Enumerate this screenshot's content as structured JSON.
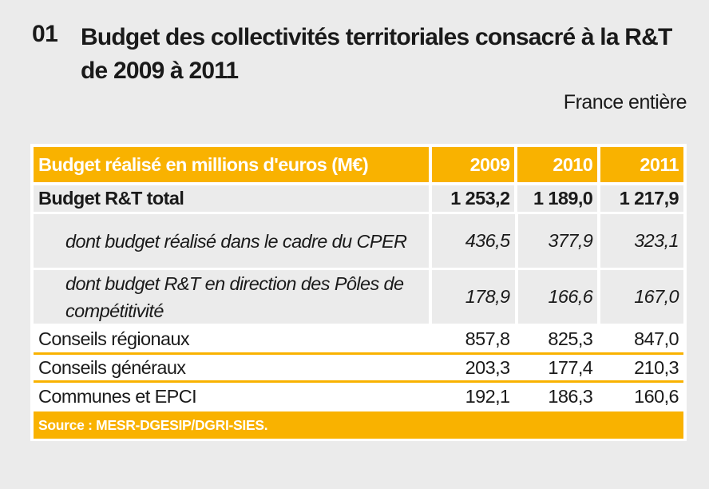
{
  "header": {
    "number": "01",
    "title": "Budget des collectivités territoriales consacré à la R&T de 2009 à 2011",
    "scope": "France entière"
  },
  "table": {
    "columns": [
      "Budget réalisé en millions d'euros (M€)",
      "2009",
      "2010",
      "2011"
    ],
    "rows": [
      {
        "label": "Budget R&T total",
        "values": [
          "1 253,2",
          "1 189,0",
          "1 217,9"
        ]
      },
      {
        "label": "dont budget réalisé dans le cadre du CPER",
        "values": [
          "436,5",
          "377,9",
          "323,1"
        ]
      },
      {
        "label": "dont budget R&T en direction des Pôles de compétitivité",
        "values": [
          "178,9",
          "166,6",
          "167,0"
        ]
      },
      {
        "label": "Conseils régionaux",
        "values": [
          "857,8",
          "825,3",
          "847,0"
        ]
      },
      {
        "label": "Conseils généraux",
        "values": [
          "203,3",
          "177,4",
          "210,3"
        ]
      },
      {
        "label": "Communes et EPCI",
        "values": [
          "192,1",
          "186,3",
          "160,6"
        ]
      }
    ],
    "source": "Source : MESR-DGESIP/DGRI-SIES."
  },
  "colors": {
    "accent": "#f9b200",
    "background": "#ebebeb"
  }
}
